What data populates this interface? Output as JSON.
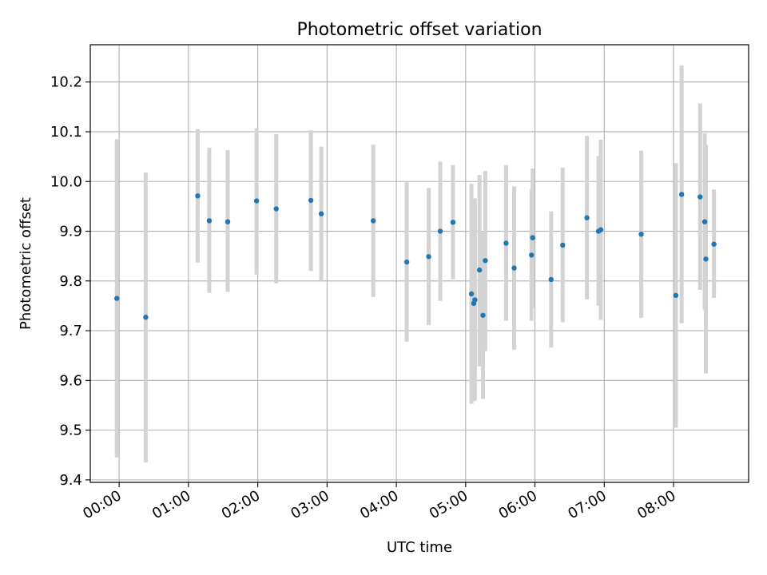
{
  "chart_data": {
    "type": "scatter",
    "title": "Photometric offset variation",
    "xlabel": "UTC time",
    "ylabel": "Photometric offset",
    "x_axis": "time",
    "x_tick_labels": [
      "00:00",
      "01:00",
      "02:00",
      "03:00",
      "04:00",
      "05:00",
      "06:00",
      "07:00",
      "08:00"
    ],
    "y_ticks": [
      9.4,
      9.5,
      9.6,
      9.7,
      9.8,
      9.9,
      10.0,
      10.1,
      10.2
    ],
    "y_tick_labels": [
      "9.4",
      "9.5",
      "9.6",
      "9.7",
      "9.8",
      "9.9",
      "10.0",
      "10.1",
      "10.2"
    ],
    "xlim": [
      "23:35",
      "09:05"
    ],
    "ylim": [
      9.395,
      10.275
    ],
    "grid": true,
    "point_color": "#1f77b4",
    "errorbar_color": "#d3d3d3",
    "points": [
      {
        "t": "23:58",
        "y": 9.765,
        "lo": 9.445,
        "hi": 10.085
      },
      {
        "t": "00:23",
        "y": 9.727,
        "lo": 9.435,
        "hi": 10.018
      },
      {
        "t": "01:08",
        "y": 9.971,
        "lo": 9.837,
        "hi": 10.105
      },
      {
        "t": "01:18",
        "y": 9.921,
        "lo": 9.776,
        "hi": 10.068
      },
      {
        "t": "01:34",
        "y": 9.919,
        "lo": 9.778,
        "hi": 10.063
      },
      {
        "t": "01:59",
        "y": 9.961,
        "lo": 9.813,
        "hi": 10.107
      },
      {
        "t": "02:16",
        "y": 9.945,
        "lo": 9.795,
        "hi": 10.095
      },
      {
        "t": "02:46",
        "y": 9.962,
        "lo": 9.82,
        "hi": 10.103
      },
      {
        "t": "02:55",
        "y": 9.935,
        "lo": 9.8,
        "hi": 10.07
      },
      {
        "t": "03:40",
        "y": 9.921,
        "lo": 9.768,
        "hi": 10.074
      },
      {
        "t": "04:09",
        "y": 9.838,
        "lo": 9.678,
        "hi": 9.999
      },
      {
        "t": "04:28",
        "y": 9.849,
        "lo": 9.711,
        "hi": 9.987
      },
      {
        "t": "04:38",
        "y": 9.9,
        "lo": 9.76,
        "hi": 10.04
      },
      {
        "t": "04:49",
        "y": 9.918,
        "lo": 9.803,
        "hi": 10.033
      },
      {
        "t": "05:05",
        "y": 9.774,
        "lo": 9.553,
        "hi": 9.995
      },
      {
        "t": "05:07",
        "y": 9.755,
        "lo": 9.558,
        "hi": 9.962
      },
      {
        "t": "05:08",
        "y": 9.762,
        "lo": 9.56,
        "hi": 9.966
      },
      {
        "t": "05:12",
        "y": 9.822,
        "lo": 9.628,
        "hi": 10.013
      },
      {
        "t": "05:15",
        "y": 9.731,
        "lo": 9.563,
        "hi": 9.898
      },
      {
        "t": "05:17",
        "y": 9.841,
        "lo": 9.659,
        "hi": 10.021
      },
      {
        "t": "05:35",
        "y": 9.876,
        "lo": 9.72,
        "hi": 10.033
      },
      {
        "t": "05:42",
        "y": 9.826,
        "lo": 9.662,
        "hi": 9.99
      },
      {
        "t": "05:57",
        "y": 9.852,
        "lo": 9.72,
        "hi": 9.985
      },
      {
        "t": "05:58",
        "y": 9.887,
        "lo": 9.747,
        "hi": 10.026
      },
      {
        "t": "06:14",
        "y": 9.803,
        "lo": 9.666,
        "hi": 9.94
      },
      {
        "t": "06:24",
        "y": 9.872,
        "lo": 9.717,
        "hi": 10.028
      },
      {
        "t": "06:45",
        "y": 9.927,
        "lo": 9.763,
        "hi": 10.092
      },
      {
        "t": "06:55",
        "y": 9.9,
        "lo": 9.75,
        "hi": 10.051
      },
      {
        "t": "06:57",
        "y": 9.903,
        "lo": 9.722,
        "hi": 10.084
      },
      {
        "t": "07:32",
        "y": 9.894,
        "lo": 9.726,
        "hi": 10.062
      },
      {
        "t": "08:02",
        "y": 9.771,
        "lo": 9.505,
        "hi": 10.037
      },
      {
        "t": "08:07",
        "y": 9.974,
        "lo": 9.715,
        "hi": 10.233
      },
      {
        "t": "08:23",
        "y": 9.969,
        "lo": 9.782,
        "hi": 10.157
      },
      {
        "t": "08:27",
        "y": 9.919,
        "lo": 9.741,
        "hi": 10.097
      },
      {
        "t": "08:28",
        "y": 9.844,
        "lo": 9.614,
        "hi": 10.074
      },
      {
        "t": "08:35",
        "y": 9.874,
        "lo": 9.766,
        "hi": 9.984
      }
    ]
  }
}
